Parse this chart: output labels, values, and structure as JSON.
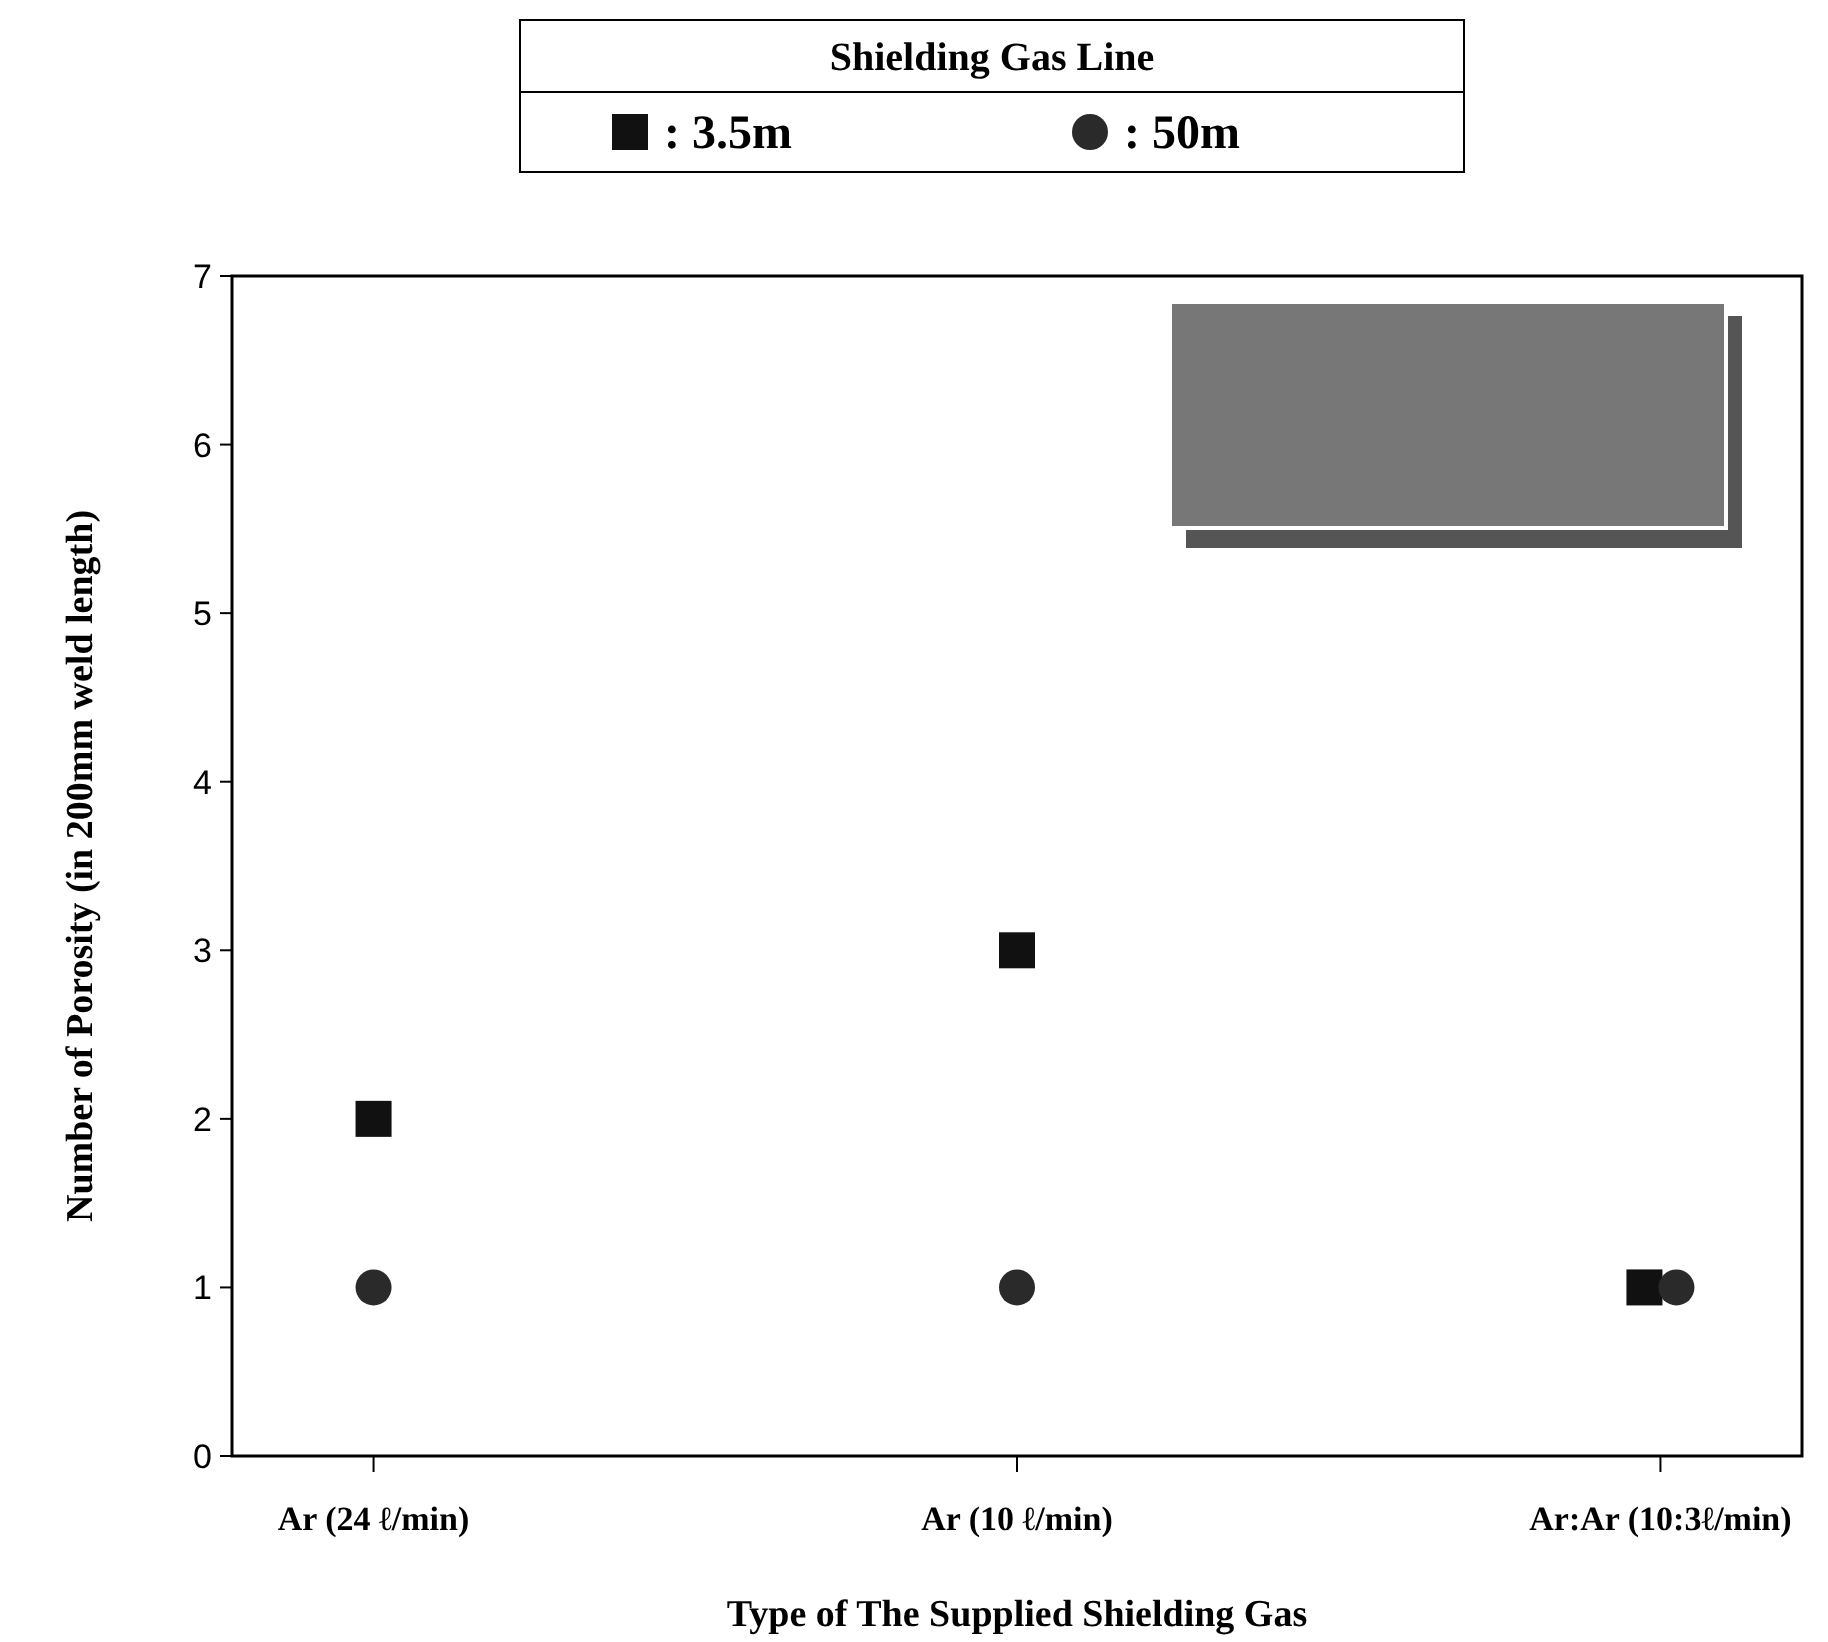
{
  "chart_data": {
    "type": "scatter",
    "xlabel": "Type of The Supplied Shielding Gas",
    "ylabel": "Number of Porosity (in 200mm weld length)",
    "legend_title": "Shielding Gas Line",
    "legend": "top",
    "categories": [
      "Ar (24 ℓ/min)",
      "Ar (10 ℓ/min)",
      "Ar:Ar (10:3ℓ/min)"
    ],
    "ylim": [
      0,
      7
    ],
    "yticks": [
      0,
      1,
      2,
      3,
      4,
      5,
      6,
      7
    ],
    "series": [
      {
        "name": ": 3.5m",
        "color": "#111111",
        "marker": "square",
        "values": [
          2,
          3,
          1
        ]
      },
      {
        "name": ": 50m",
        "color": "#2a2a2a",
        "marker": "circle",
        "values": [
          1,
          1,
          1
        ]
      }
    ]
  }
}
